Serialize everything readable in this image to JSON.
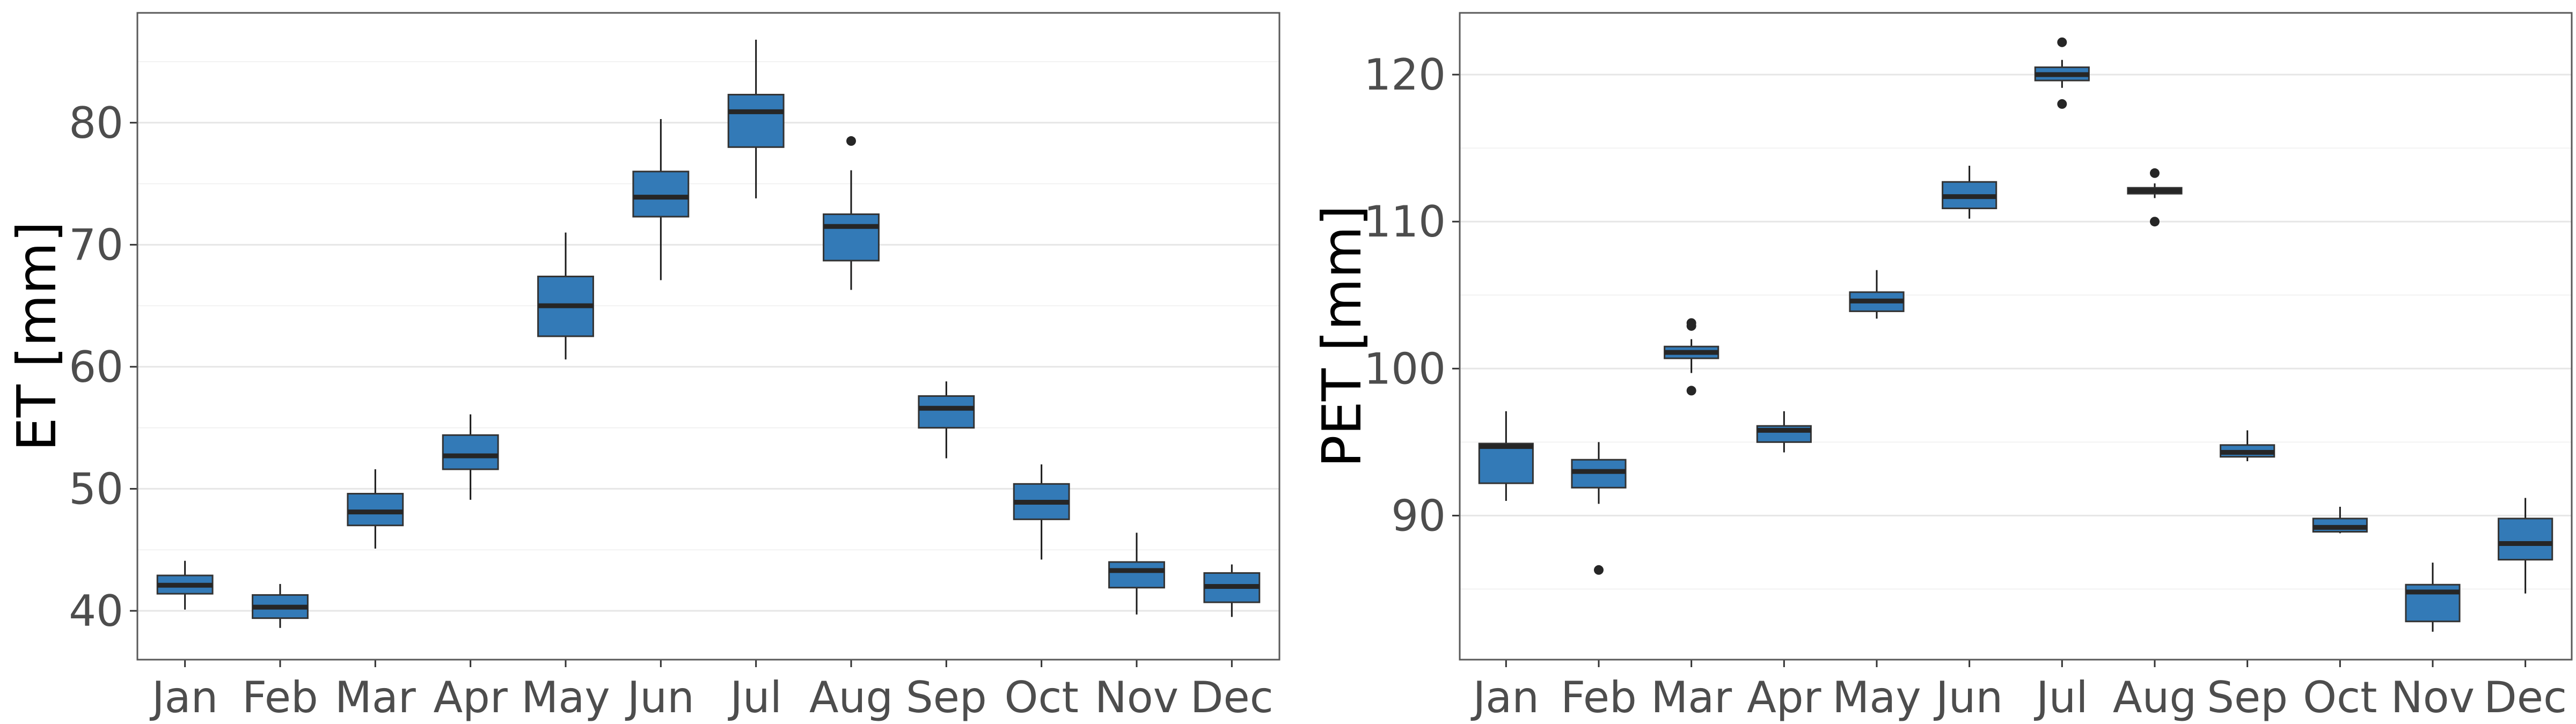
{
  "colors": {
    "box_fill": "#337ab7",
    "box_stroke": "#333333",
    "median_line": "#262626",
    "whisker": "#1a1a1a",
    "outlier": "#262626",
    "grid_major": "#e6e6e6",
    "grid_minor": "#f2f2f2",
    "panel_border": "#595959"
  },
  "chart_data": [
    {
      "type": "boxplot",
      "xlabel": "",
      "ylabel": "ET [mm]",
      "ylim": [
        36,
        89
      ],
      "yticks": [
        40,
        50,
        60,
        70,
        80
      ],
      "grid": true,
      "categories": [
        "Jan",
        "Feb",
        "Mar",
        "Apr",
        "May",
        "Jun",
        "Jul",
        "Aug",
        "Sep",
        "Oct",
        "Nov",
        "Dec"
      ],
      "boxes": [
        {
          "min": 40.1,
          "q1": 41.4,
          "median": 42.1,
          "q3": 42.9,
          "max": 44.1,
          "outliers": []
        },
        {
          "min": 38.6,
          "q1": 39.4,
          "median": 40.3,
          "q3": 41.3,
          "max": 42.2,
          "outliers": []
        },
        {
          "min": 45.1,
          "q1": 47.0,
          "median": 48.1,
          "q3": 49.6,
          "max": 51.6,
          "outliers": []
        },
        {
          "min": 49.1,
          "q1": 51.6,
          "median": 52.7,
          "q3": 54.4,
          "max": 56.1,
          "outliers": []
        },
        {
          "min": 60.6,
          "q1": 62.5,
          "median": 65.0,
          "q3": 67.4,
          "max": 71.0,
          "outliers": []
        },
        {
          "min": 67.1,
          "q1": 72.3,
          "median": 73.9,
          "q3": 76.0,
          "max": 80.3,
          "outliers": []
        },
        {
          "min": 73.8,
          "q1": 78.0,
          "median": 80.9,
          "q3": 82.3,
          "max": 86.8,
          "outliers": []
        },
        {
          "min": 66.3,
          "q1": 68.7,
          "median": 71.5,
          "q3": 72.5,
          "max": 76.1,
          "outliers": [
            78.5
          ]
        },
        {
          "min": 52.5,
          "q1": 55.0,
          "median": 56.6,
          "q3": 57.6,
          "max": 58.8,
          "outliers": []
        },
        {
          "min": 44.2,
          "q1": 47.5,
          "median": 48.9,
          "q3": 50.4,
          "max": 52.0,
          "outliers": []
        },
        {
          "min": 39.7,
          "q1": 41.9,
          "median": 43.3,
          "q3": 44.0,
          "max": 46.4,
          "outliers": []
        },
        {
          "min": 39.5,
          "q1": 40.7,
          "median": 42.0,
          "q3": 43.1,
          "max": 43.8,
          "outliers": []
        }
      ]
    },
    {
      "type": "boxplot",
      "xlabel": "",
      "ylabel": "PET [mm]",
      "ylim": [
        80.2,
        124.2
      ],
      "yticks": [
        90,
        100,
        110,
        120
      ],
      "grid": true,
      "categories": [
        "Jan",
        "Feb",
        "Mar",
        "Apr",
        "May",
        "Jun",
        "Jul",
        "Aug",
        "Sep",
        "Oct",
        "Nov",
        "Dec"
      ],
      "boxes": [
        {
          "min": 91.0,
          "q1": 92.2,
          "median": 94.7,
          "q3": 94.9,
          "max": 97.1,
          "outliers": []
        },
        {
          "min": 90.8,
          "q1": 91.9,
          "median": 93.0,
          "q3": 93.8,
          "max": 95.0,
          "outliers": [
            86.3
          ]
        },
        {
          "min": 99.7,
          "q1": 100.7,
          "median": 101.1,
          "q3": 101.5,
          "max": 102.0,
          "outliers": [
            102.9,
            103.1,
            98.5
          ]
        },
        {
          "min": 94.3,
          "q1": 95.0,
          "median": 95.8,
          "q3": 96.1,
          "max": 97.1,
          "outliers": []
        },
        {
          "min": 103.4,
          "q1": 103.9,
          "median": 104.6,
          "q3": 105.2,
          "max": 106.7,
          "outliers": []
        },
        {
          "min": 110.2,
          "q1": 110.9,
          "median": 111.7,
          "q3": 112.7,
          "max": 113.8,
          "outliers": []
        },
        {
          "min": 119.1,
          "q1": 119.6,
          "median": 120.0,
          "q3": 120.5,
          "max": 121.0,
          "outliers": [
            122.2,
            118.0
          ]
        },
        {
          "min": 111.6,
          "q1": 111.9,
          "median": 112.1,
          "q3": 112.3,
          "max": 112.6,
          "outliers": [
            113.3,
            110.0
          ]
        },
        {
          "min": 93.7,
          "q1": 94.0,
          "median": 94.3,
          "q3": 94.8,
          "max": 95.8,
          "outliers": []
        },
        {
          "min": 88.8,
          "q1": 88.9,
          "median": 89.2,
          "q3": 89.8,
          "max": 90.6,
          "outliers": []
        },
        {
          "min": 82.1,
          "q1": 82.8,
          "median": 84.8,
          "q3": 85.3,
          "max": 86.8,
          "outliers": []
        },
        {
          "min": 84.7,
          "q1": 87.0,
          "median": 88.1,
          "q3": 89.8,
          "max": 91.2,
          "outliers": []
        }
      ]
    }
  ]
}
